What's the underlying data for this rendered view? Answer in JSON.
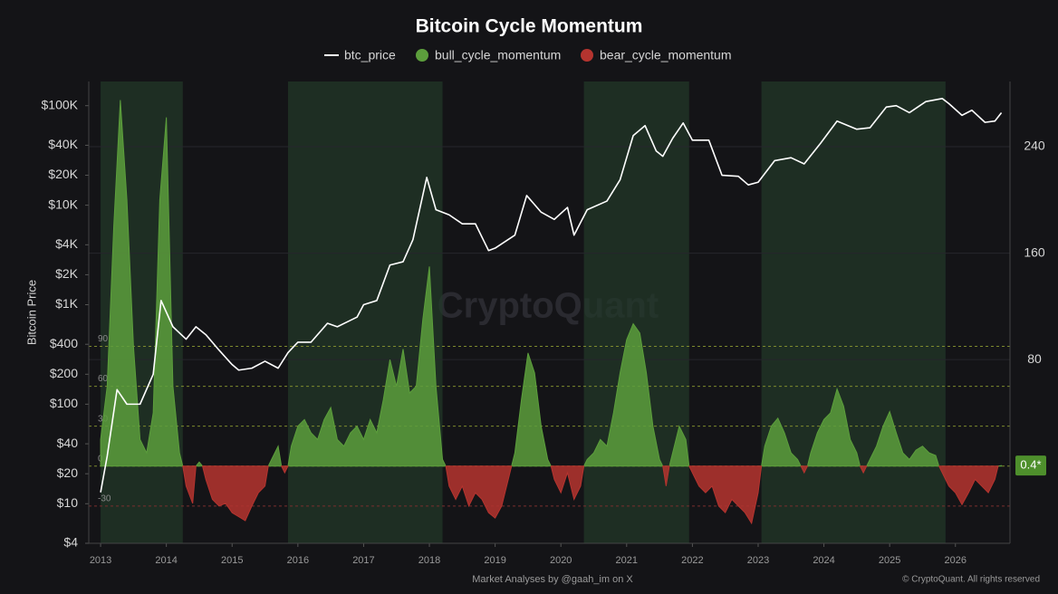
{
  "chart_data": {
    "type": "line",
    "title": "Bitcoin Cycle Momentum",
    "ylabel": "Bitcoin Price",
    "watermark": "CryptoQuant",
    "footer_left": "Market Analyses by @gaah_im on X",
    "footer_right": "© CryptoQuant. All rights reserved",
    "xlim": [
      2012.82,
      2026.83
    ],
    "xticks": [
      2013,
      2014,
      2015,
      2016,
      2017,
      2018,
      2019,
      2020,
      2021,
      2022,
      2023,
      2024,
      2025,
      2026
    ],
    "ylim": [
      4,
      175000
    ],
    "log_y": true,
    "yticks": [
      {
        "value": 4,
        "label": "$4"
      },
      {
        "value": 10,
        "label": "$10"
      },
      {
        "value": 20,
        "label": "$20"
      },
      {
        "value": 40,
        "label": "$40"
      },
      {
        "value": 100,
        "label": "$100"
      },
      {
        "value": 200,
        "label": "$200"
      },
      {
        "value": 400,
        "label": "$400"
      },
      {
        "value": 1000,
        "label": "$1K"
      },
      {
        "value": 2000,
        "label": "$2K"
      },
      {
        "value": 4000,
        "label": "$4K"
      },
      {
        "value": 10000,
        "label": "$10K"
      },
      {
        "value": 20000,
        "label": "$20K"
      },
      {
        "value": 40000,
        "label": "$40K"
      },
      {
        "value": 100000,
        "label": "$100K"
      }
    ],
    "y2lim": [
      -58,
      289
    ],
    "y2ticks": [
      80,
      160,
      240
    ],
    "momentum_levels": [
      90,
      60,
      30,
      0,
      -30
    ],
    "current": {
      "value": 0.4,
      "label": "0.4*"
    },
    "shaded_periods": [
      [
        2013.0,
        2014.25
      ],
      [
        2015.85,
        2018.2
      ],
      [
        2020.35,
        2021.95
      ],
      [
        2023.05,
        2025.85
      ]
    ],
    "series": [
      {
        "name": "btc_price",
        "color": "#ffffff",
        "kind": "line",
        "x": [
          2013.0,
          2013.1,
          2013.25,
          2013.4,
          2013.6,
          2013.8,
          2013.92,
          2014.1,
          2014.3,
          2014.45,
          2014.6,
          2014.8,
          2015.0,
          2015.1,
          2015.3,
          2015.5,
          2015.7,
          2015.85,
          2016.0,
          2016.2,
          2016.45,
          2016.6,
          2016.9,
          2017.0,
          2017.2,
          2017.4,
          2017.6,
          2017.75,
          2017.96,
          2018.1,
          2018.3,
          2018.5,
          2018.7,
          2018.9,
          2019.0,
          2019.3,
          2019.48,
          2019.7,
          2019.9,
          2020.1,
          2020.2,
          2020.4,
          2020.7,
          2020.9,
          2021.1,
          2021.28,
          2021.45,
          2021.55,
          2021.7,
          2021.86,
          2022.0,
          2022.25,
          2022.45,
          2022.7,
          2022.85,
          2023.0,
          2023.25,
          2023.5,
          2023.7,
          2023.95,
          2024.2,
          2024.5,
          2024.7,
          2024.95,
          2025.1,
          2025.3,
          2025.55,
          2025.8,
          2025.9,
          2026.1,
          2026.25,
          2026.45,
          2026.6,
          2026.7
        ],
        "values": [
          13,
          30,
          140,
          100,
          100,
          200,
          1100,
          600,
          450,
          600,
          500,
          350,
          250,
          220,
          230,
          270,
          230,
          330,
          420,
          420,
          650,
          600,
          750,
          1000,
          1100,
          2500,
          2700,
          4500,
          19000,
          9000,
          8000,
          6500,
          6500,
          3500,
          3700,
          5000,
          12500,
          8500,
          7200,
          9500,
          5000,
          9000,
          11000,
          18000,
          50000,
          63000,
          35000,
          31000,
          47000,
          67000,
          45000,
          45000,
          20000,
          19500,
          16000,
          17000,
          28000,
          30000,
          26000,
          42000,
          70000,
          58000,
          60000,
          97000,
          100000,
          85000,
          110000,
          118000,
          105000,
          80000,
          90000,
          68000,
          70000,
          85000
        ]
      },
      {
        "name": "bull_cycle_momentum",
        "color": "#5c9e3c",
        "kind": "area",
        "axis": "y2",
        "x": [
          2013.0,
          2013.1,
          2013.2,
          2013.3,
          2013.4,
          2013.5,
          2013.6,
          2013.7,
          2013.8,
          2013.9,
          2014.0,
          2014.1,
          2014.2,
          2014.3,
          2014.4,
          2014.5,
          2014.6,
          2014.7,
          2014.8,
          2014.9,
          2015.0,
          2015.1,
          2015.2,
          2015.3,
          2015.4,
          2015.5,
          2015.6,
          2015.7,
          2015.8,
          2015.9,
          2016.0,
          2016.1,
          2016.2,
          2016.3,
          2016.4,
          2016.5,
          2016.6,
          2016.7,
          2016.8,
          2016.9,
          2017.0,
          2017.1,
          2017.2,
          2017.3,
          2017.4,
          2017.5,
          2017.6,
          2017.7,
          2017.8,
          2017.9,
          2018.0,
          2018.1,
          2018.2,
          2018.3,
          2018.4,
          2018.5,
          2018.6,
          2018.7,
          2018.8,
          2018.9,
          2019.0,
          2019.1,
          2019.2,
          2019.3,
          2019.4,
          2019.5,
          2019.6,
          2019.7,
          2019.8,
          2019.9,
          2020.0,
          2020.1,
          2020.2,
          2020.3,
          2020.4,
          2020.5,
          2020.6,
          2020.7,
          2020.8,
          2020.9,
          2021.0,
          2021.1,
          2021.2,
          2021.3,
          2021.4,
          2021.5,
          2021.6,
          2021.7,
          2021.8,
          2021.9,
          2022.0,
          2022.1,
          2022.2,
          2022.3,
          2022.4,
          2022.5,
          2022.6,
          2022.7,
          2022.8,
          2022.9,
          2023.0,
          2023.1,
          2023.2,
          2023.3,
          2023.4,
          2023.5,
          2023.6,
          2023.7,
          2023.8,
          2023.9,
          2024.0,
          2024.1,
          2024.2,
          2024.3,
          2024.4,
          2024.5,
          2024.6,
          2024.7,
          2024.8,
          2024.9,
          2025.0,
          2025.1,
          2025.2,
          2025.3,
          2025.4,
          2025.5,
          2025.6,
          2025.7,
          2025.8,
          2025.9,
          2026.0,
          2026.1,
          2026.2,
          2026.3,
          2026.4,
          2026.5,
          2026.6,
          2026.7
        ],
        "values": [
          20,
          60,
          180,
          275,
          200,
          90,
          20,
          10,
          40,
          200,
          262,
          60,
          10,
          null,
          null,
          3,
          null,
          null,
          null,
          null,
          null,
          null,
          null,
          null,
          null,
          null,
          5,
          15,
          null,
          15,
          30,
          35,
          25,
          20,
          35,
          44,
          20,
          15,
          25,
          30,
          20,
          35,
          25,
          50,
          80,
          60,
          88,
          55,
          60,
          110,
          150,
          60,
          5,
          null,
          null,
          null,
          null,
          null,
          null,
          null,
          null,
          null,
          null,
          10,
          50,
          85,
          70,
          30,
          5,
          null,
          null,
          null,
          null,
          null,
          5,
          10,
          20,
          15,
          40,
          70,
          95,
          107,
          100,
          70,
          30,
          5,
          null,
          10,
          30,
          20,
          null,
          null,
          null,
          null,
          null,
          null,
          null,
          null,
          null,
          null,
          null,
          15,
          30,
          36,
          25,
          10,
          5,
          null,
          10,
          25,
          35,
          40,
          58,
          45,
          20,
          10,
          null,
          5,
          15,
          30,
          41,
          25,
          10,
          5,
          12,
          15,
          10,
          8,
          null,
          null,
          null,
          null,
          null,
          null,
          null,
          null,
          null,
          0.4
        ]
      },
      {
        "name": "bear_cycle_momentum",
        "color": "#b5342f",
        "kind": "area",
        "axis": "y2",
        "x": [
          2013.0,
          2013.1,
          2013.2,
          2013.3,
          2013.4,
          2013.5,
          2013.6,
          2013.7,
          2013.8,
          2013.9,
          2014.0,
          2014.1,
          2014.2,
          2014.3,
          2014.4,
          2014.5,
          2014.6,
          2014.7,
          2014.8,
          2014.9,
          2015.0,
          2015.1,
          2015.2,
          2015.3,
          2015.4,
          2015.5,
          2015.6,
          2015.7,
          2015.8,
          2015.9,
          2016.0,
          2016.1,
          2016.2,
          2016.3,
          2016.4,
          2016.5,
          2016.6,
          2016.7,
          2016.8,
          2016.9,
          2017.0,
          2017.1,
          2017.2,
          2017.3,
          2017.4,
          2017.5,
          2017.6,
          2017.7,
          2017.8,
          2017.9,
          2018.0,
          2018.1,
          2018.2,
          2018.3,
          2018.4,
          2018.5,
          2018.6,
          2018.7,
          2018.8,
          2018.9,
          2019.0,
          2019.1,
          2019.2,
          2019.3,
          2019.4,
          2019.5,
          2019.6,
          2019.7,
          2019.8,
          2019.9,
          2020.0,
          2020.1,
          2020.2,
          2020.3,
          2020.4,
          2020.5,
          2020.6,
          2020.7,
          2020.8,
          2020.9,
          2021.0,
          2021.1,
          2021.2,
          2021.3,
          2021.4,
          2021.5,
          2021.6,
          2021.7,
          2021.8,
          2021.9,
          2022.0,
          2022.1,
          2022.2,
          2022.3,
          2022.4,
          2022.5,
          2022.6,
          2022.7,
          2022.8,
          2022.9,
          2023.0,
          2023.1,
          2023.2,
          2023.3,
          2023.4,
          2023.5,
          2023.6,
          2023.7,
          2023.8,
          2023.9,
          2024.0,
          2024.1,
          2024.2,
          2024.3,
          2024.4,
          2024.5,
          2024.6,
          2024.7,
          2024.8,
          2024.9,
          2025.0,
          2025.1,
          2025.2,
          2025.3,
          2025.4,
          2025.5,
          2025.6,
          2025.7,
          2025.8,
          2025.9,
          2026.0,
          2026.1,
          2026.2,
          2026.3,
          2026.4,
          2026.5,
          2026.6,
          2026.7
        ],
        "values": [
          null,
          null,
          null,
          null,
          null,
          null,
          null,
          null,
          null,
          null,
          null,
          null,
          null,
          -15,
          -28,
          null,
          -10,
          -25,
          -30,
          -28,
          -35,
          -38,
          -41,
          -30,
          -20,
          -15,
          null,
          null,
          -5,
          null,
          null,
          null,
          null,
          null,
          null,
          null,
          null,
          null,
          null,
          null,
          null,
          null,
          null,
          null,
          null,
          null,
          null,
          null,
          null,
          null,
          null,
          null,
          null,
          -15,
          -25,
          -15,
          -30,
          -20,
          -25,
          -35,
          -39,
          -30,
          -10,
          null,
          null,
          null,
          null,
          null,
          null,
          -10,
          -20,
          -5,
          -25,
          -15,
          null,
          null,
          null,
          null,
          null,
          null,
          null,
          null,
          null,
          null,
          null,
          null,
          -15,
          null,
          null,
          null,
          -5,
          -15,
          -20,
          -15,
          -30,
          -35,
          -25,
          -30,
          -35,
          -43,
          -20,
          null,
          null,
          null,
          null,
          null,
          null,
          -5,
          null,
          null,
          null,
          null,
          null,
          null,
          null,
          null,
          -5,
          null,
          null,
          null,
          null,
          null,
          null,
          null,
          null,
          null,
          null,
          null,
          -5,
          -15,
          -20,
          -29,
          -20,
          -10,
          -15,
          -20,
          -10,
          null
        ]
      }
    ]
  }
}
